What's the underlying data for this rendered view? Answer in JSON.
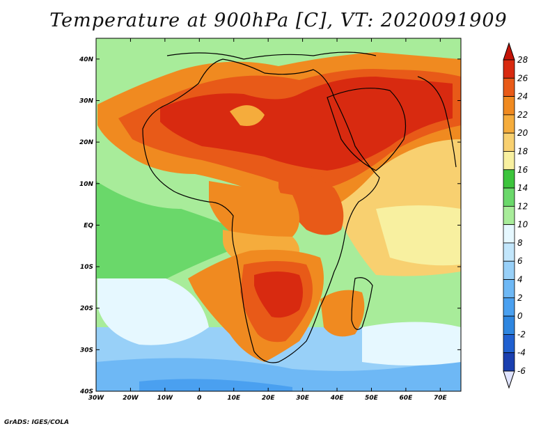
{
  "title": "Temperature at 900hPa [C], VT: 2020091909",
  "credit": "GrADS: IGES/COLA",
  "map": {
    "variable": "Temperature",
    "level": "900hPa",
    "units": "C",
    "valid_time": "2020091909",
    "lon_range": [
      -30,
      76
    ],
    "lat_range": [
      -40,
      45
    ],
    "lat_labels": [
      {
        "value": 40,
        "label": "40N"
      },
      {
        "value": 30,
        "label": "30N"
      },
      {
        "value": 20,
        "label": "20N"
      },
      {
        "value": 10,
        "label": "10N"
      },
      {
        "value": 0,
        "label": "EQ"
      },
      {
        "value": -10,
        "label": "10S"
      },
      {
        "value": -20,
        "label": "20S"
      },
      {
        "value": -30,
        "label": "30S"
      },
      {
        "value": -40,
        "label": "40S"
      }
    ],
    "lon_labels": [
      {
        "value": -30,
        "label": "30W"
      },
      {
        "value": -20,
        "label": "20W"
      },
      {
        "value": -10,
        "label": "10W"
      },
      {
        "value": 0,
        "label": "0"
      },
      {
        "value": 10,
        "label": "10E"
      },
      {
        "value": 20,
        "label": "20E"
      },
      {
        "value": 30,
        "label": "30E"
      },
      {
        "value": 40,
        "label": "40E"
      },
      {
        "value": 50,
        "label": "50E"
      },
      {
        "value": 60,
        "label": "60E"
      },
      {
        "value": 70,
        "label": "70E"
      }
    ]
  },
  "colorbar": {
    "levels": [
      -6,
      -4,
      -2,
      0,
      2,
      4,
      6,
      8,
      10,
      12,
      14,
      16,
      18,
      20,
      22,
      24,
      26,
      28
    ],
    "labels": [
      "-6",
      "-4",
      "-2",
      "0",
      "2",
      "4",
      "6",
      "8",
      "10",
      "12",
      "14",
      "16",
      "18",
      "20",
      "22",
      "24",
      "26",
      "28"
    ],
    "colors": [
      "#14147a",
      "#1a3fb0",
      "#2060d0",
      "#2e86e0",
      "#4aa0f0",
      "#6eb8f5",
      "#98d0f8",
      "#c2e6fb",
      "#e6f8ff",
      "#a8ec9a",
      "#6ad86a",
      "#3cc43c",
      "#f8f0a0",
      "#f8d070",
      "#f5ac3c",
      "#f08a20",
      "#e85a18",
      "#d82a10",
      "#c41408"
    ],
    "min_color": "#e0e4ff",
    "max_color": "#c41408"
  },
  "regions": [
    {
      "name": "south-ocean-cold",
      "value": 4,
      "color": "#6eb8f5"
    },
    {
      "name": "south-ocean-mild",
      "value": 8,
      "color": "#98d0f8"
    },
    {
      "name": "atlantic-subtropic",
      "value": 10,
      "color": "#e6f8ff"
    },
    {
      "name": "ocean-green",
      "value": 14,
      "color": "#6ad86a"
    },
    {
      "name": "ocean-green-light",
      "value": 12,
      "color": "#a8ec9a"
    },
    {
      "name": "indian-ocean",
      "value": 20,
      "color": "#f8d070"
    },
    {
      "name": "sahara-hot",
      "value": 28,
      "color": "#d82a10"
    },
    {
      "name": "sahel-hot",
      "value": 26,
      "color": "#e85a18"
    },
    {
      "name": "southern-africa-hot",
      "value": 26,
      "color": "#e85a18"
    },
    {
      "name": "arabia-hot",
      "value": 28,
      "color": "#d82a10"
    }
  ]
}
